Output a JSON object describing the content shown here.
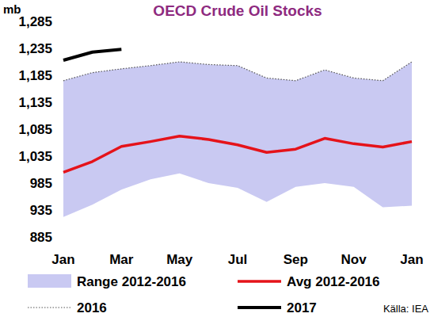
{
  "chart_data": {
    "type": "line",
    "title": "OECD Crude Oil Stocks",
    "y_label": "mb",
    "annotations": [
      "Källa: IEA"
    ],
    "categories": [
      "Jan",
      null,
      "Mar",
      null,
      "May",
      null,
      "Jul",
      null,
      "Sep",
      null,
      "Nov",
      null,
      "Jan"
    ],
    "ylim": [
      885,
      1285
    ],
    "yticks": [
      885,
      935,
      985,
      {
        "value": 1035,
        "label": "1,035"
      },
      {
        "value": 1085,
        "label": "1,085"
      },
      {
        "value": 1135,
        "label": "1,135"
      },
      {
        "value": 1185,
        "label": "1,185"
      },
      {
        "value": 1235,
        "label": "1,235"
      },
      {
        "value": 1285,
        "label": "1,285"
      }
    ],
    "grid": false,
    "legend": "bottom",
    "series": [
      {
        "name": "Range 2012-2016",
        "type": "area",
        "color": "#c9c9f2",
        "lower": [
          922,
          945,
          973,
          992,
          1003,
          985,
          976,
          950,
          978,
          985,
          978,
          940,
          943
        ],
        "values": [
          1175,
          1190,
          1197,
          1203,
          1210,
          1205,
          1203,
          1180,
          1175,
          1195,
          1180,
          1175,
          1210
        ]
      },
      {
        "name": "Avg 2012-2016",
        "type": "line",
        "color": "#e5131a",
        "line_style": "solid",
        "values": [
          1005,
          1025,
          1053,
          1062,
          1072,
          1066,
          1056,
          1042,
          1048,
          1068,
          1058,
          1052,
          1062
        ]
      },
      {
        "name": "2016",
        "type": "line",
        "color": "#555555",
        "line_style": "dotted",
        "values": [
          1175,
          1190,
          1197,
          1203,
          1210,
          1205,
          1203,
          1180,
          1175,
          1195,
          1180,
          1175,
          1210
        ]
      },
      {
        "name": "2017",
        "type": "line",
        "color": "#000000",
        "line_style": "solid",
        "values": [
          1213,
          1228,
          1233,
          null,
          null,
          null,
          null,
          null,
          null,
          null,
          null,
          null,
          null
        ]
      }
    ]
  }
}
